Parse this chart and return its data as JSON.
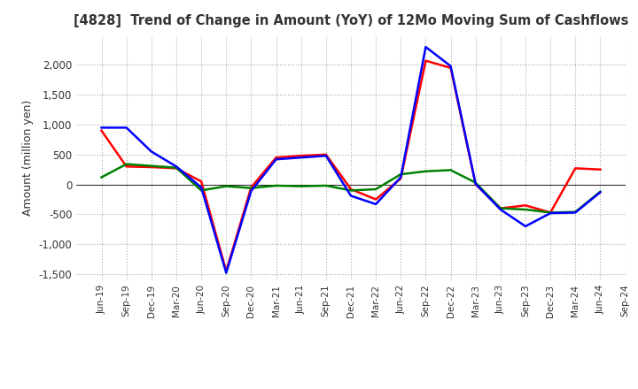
{
  "title": "[4828]  Trend of Change in Amount (YoY) of 12Mo Moving Sum of Cashflows",
  "ylabel": "Amount (million yen)",
  "x_labels": [
    "Jun-19",
    "Sep-19",
    "Dec-19",
    "Mar-20",
    "Jun-20",
    "Sep-20",
    "Dec-20",
    "Mar-21",
    "Jun-21",
    "Sep-21",
    "Dec-21",
    "Mar-22",
    "Jun-22",
    "Sep-22",
    "Dec-22",
    "Mar-23",
    "Jun-23",
    "Sep-23",
    "Dec-23",
    "Mar-24",
    "Jun-24",
    "Sep-24"
  ],
  "operating": [
    900,
    300,
    290,
    270,
    50,
    -1450,
    -50,
    450,
    480,
    500,
    -80,
    -250,
    100,
    2070,
    1950,
    0,
    -400,
    -350,
    -470,
    270,
    250,
    null
  ],
  "investing": [
    120,
    340,
    310,
    280,
    -100,
    -30,
    -60,
    -20,
    -30,
    -20,
    -100,
    -80,
    170,
    220,
    240,
    30,
    -400,
    -420,
    -470,
    -460,
    -120,
    null
  ],
  "free": [
    950,
    950,
    550,
    300,
    -50,
    -1480,
    -110,
    420,
    450,
    480,
    -190,
    -330,
    120,
    2300,
    1980,
    10,
    -420,
    -700,
    -480,
    -470,
    -130,
    null
  ],
  "ylim": [
    -1600,
    2500
  ],
  "yticks": [
    -1500,
    -1000,
    -500,
    0,
    500,
    1000,
    1500,
    2000
  ],
  "operating_color": "#ff0000",
  "investing_color": "#008000",
  "free_color": "#0000ff",
  "background_color": "#ffffff",
  "grid_color": "#999999",
  "title_color": "#333333"
}
